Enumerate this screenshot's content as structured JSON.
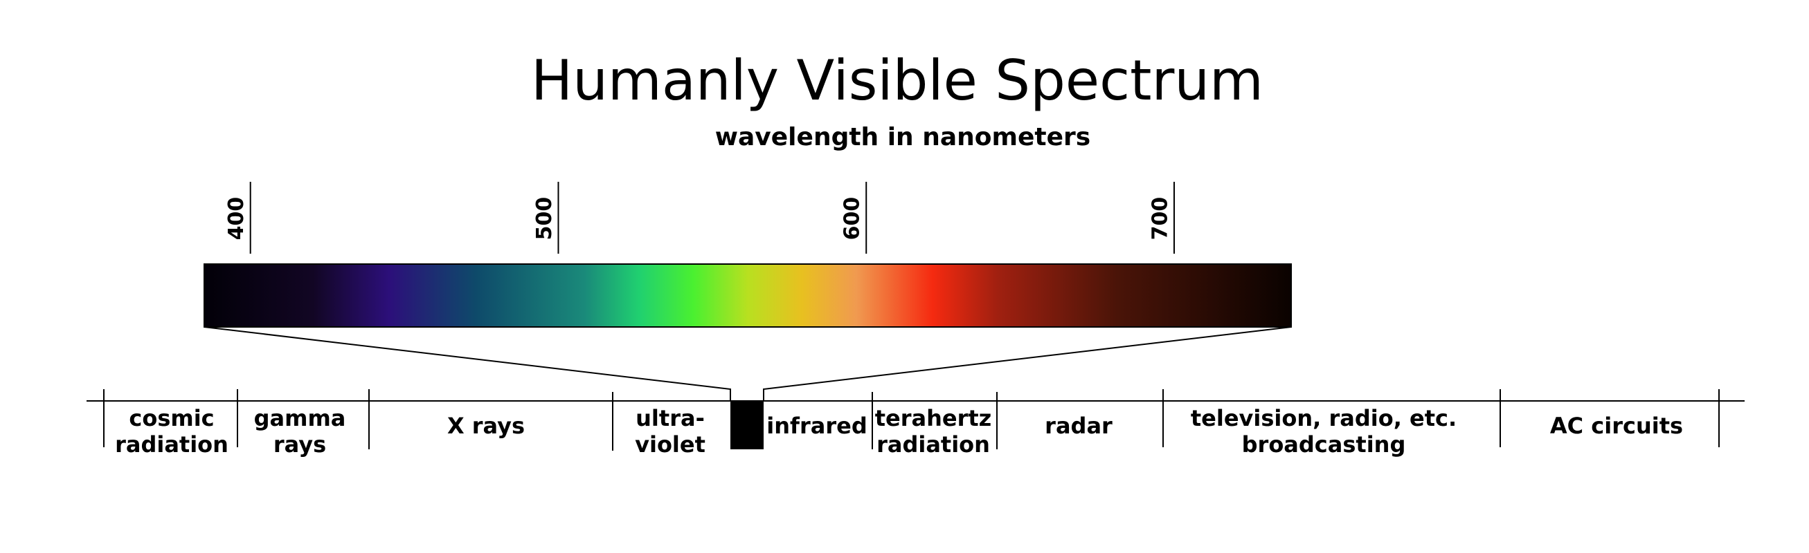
{
  "title": "Humanly Visible Spectrum",
  "subtitle": "wavelength in nanometers",
  "scale": {
    "xlim": [
      385,
      738
    ],
    "ticks": [
      400,
      500,
      600,
      700
    ]
  },
  "bands": [
    {
      "lines": [
        "cosmic",
        "radiation"
      ]
    },
    {
      "lines": [
        "gamma",
        "rays"
      ]
    },
    {
      "lines": [
        "X rays"
      ]
    },
    {
      "lines": [
        "ultra-",
        "violet"
      ]
    },
    {
      "lines": [
        "infrared"
      ]
    },
    {
      "lines": [
        "terahertz",
        "radiation"
      ]
    },
    {
      "lines": [
        "radar"
      ]
    },
    {
      "lines": [
        "television, radio, etc.",
        "broadcasting"
      ]
    },
    {
      "lines": [
        "AC circuits"
      ]
    }
  ]
}
